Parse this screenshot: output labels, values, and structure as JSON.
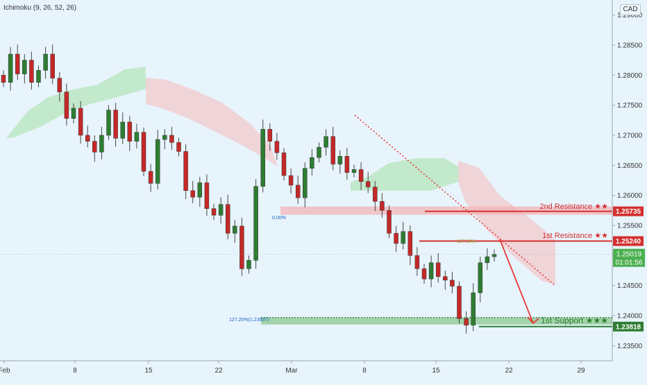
{
  "indicator_label": "Ichimoku (9, 26, 52, 26)",
  "currency": "CAD",
  "colors": {
    "background": "#e8f4fc",
    "resistance": "#d32f2f",
    "support": "#2e7d32",
    "bull_candle": "#2e7d32",
    "bear_candle": "#c62828",
    "cloud_bull": "#b9e6c0",
    "cloud_bear": "#f2c9cc",
    "projection": "#e53935",
    "trendline": "#e53935",
    "price_badge": "#4caf50"
  },
  "chart_data": {
    "type": "candlestick",
    "x_ticks": [
      "Feb",
      "8",
      "15",
      "22",
      "Mar",
      "8",
      "15",
      "22",
      "29"
    ],
    "y_ticks": [
      "1.29000",
      "1.28500",
      "1.28000",
      "1.27500",
      "1.27000",
      "1.26500",
      "1.26000",
      "1.25500",
      "1.25000",
      "1.24500",
      "1.24000",
      "1.23500"
    ],
    "ylim": [
      1.2325,
      1.2925
    ],
    "grid": false,
    "price_path": [
      1.2788,
      1.2835,
      1.2802,
      1.2825,
      1.2788,
      1.2808,
      1.2835,
      1.2795,
      1.2772,
      1.2728,
      1.2745,
      1.27,
      1.269,
      1.2672,
      1.27,
      1.2742,
      1.2695,
      1.2722,
      1.269,
      1.2705,
      1.264,
      1.262,
      1.2693,
      1.27,
      1.2688,
      1.2673,
      1.2608,
      1.2597,
      1.2621,
      1.2578,
      1.2567,
      1.2585,
      1.2537,
      1.2549,
      1.2478,
      1.2492,
      1.2615,
      1.271,
      1.269,
      1.2671,
      1.2633,
      1.2617,
      1.2596,
      1.2645,
      1.2663,
      1.268,
      1.2698,
      1.2652,
      1.2665,
      1.2638,
      1.2643,
      1.2623,
      1.2614,
      1.259,
      1.2575,
      1.2537,
      1.252,
      1.254,
      1.25,
      1.2478,
      1.2461,
      1.2488,
      1.2465,
      1.2459,
      1.2449,
      1.2395,
      1.2384,
      1.2438,
      1.2488,
      1.2498,
      1.2502
    ],
    "current_price": "1.25019",
    "countdown": "01:01:56",
    "levels": [
      {
        "name": "2nd Resistance",
        "stars": "★★",
        "value": "1.25735",
        "type": "resistance"
      },
      {
        "name": "1st Resistance",
        "stars": "★★",
        "value": "1.25240",
        "type": "resistance"
      },
      {
        "name": "1st Support",
        "stars": "★★★",
        "value": "1.23818",
        "type": "support"
      }
    ],
    "annotations": {
      "fib_label_support": "127.20%(1.23937)",
      "fib_label_resistance": "0.00%",
      "fib_label_current": "127.20%"
    }
  }
}
